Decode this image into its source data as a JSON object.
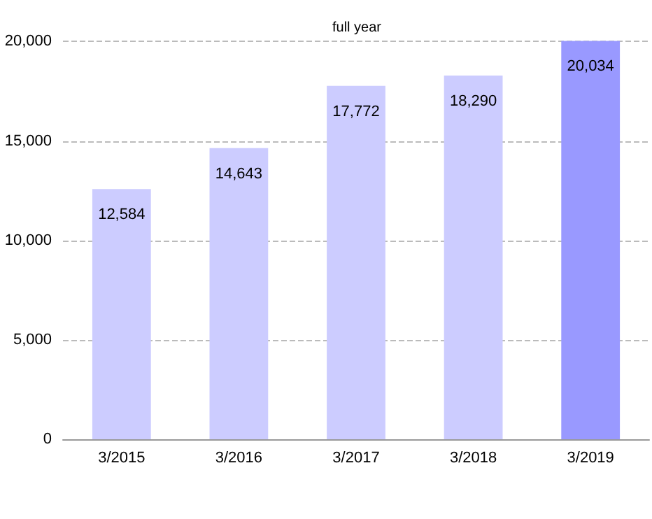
{
  "chart_data": {
    "type": "bar",
    "title": "full year",
    "categories": [
      "3/2015",
      "3/2016",
      "3/2017",
      "3/2018",
      "3/2019"
    ],
    "values": [
      12584,
      14643,
      17772,
      18290,
      20034
    ],
    "value_labels": [
      "12,584",
      "14,643",
      "17,772",
      "18,290",
      "20,034"
    ],
    "colors": [
      "#ccccff",
      "#ccccff",
      "#ccccff",
      "#ccccff",
      "#9999ff"
    ],
    "ylim": [
      0,
      20050
    ],
    "yticks": [
      {
        "value": 0,
        "label": "0"
      },
      {
        "value": 5000,
        "label": "5,000"
      },
      {
        "value": 10000,
        "label": "10,000"
      },
      {
        "value": 15000,
        "label": "15,000"
      },
      {
        "value": 20000,
        "label": "20,000"
      }
    ],
    "grid": "y"
  }
}
